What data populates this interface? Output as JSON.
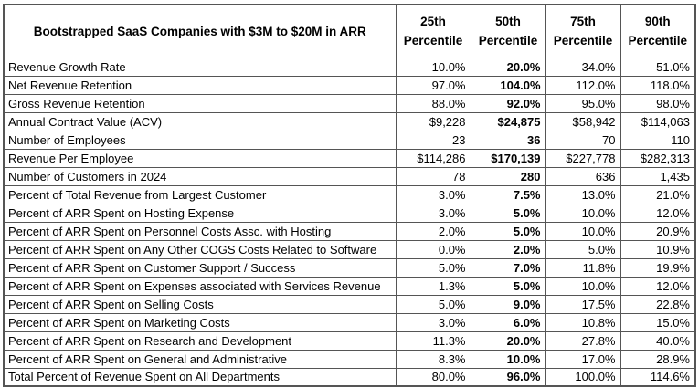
{
  "colors": {
    "background": "#ffffff",
    "border": "#555555",
    "text": "#000000"
  },
  "chart_data": {
    "type": "table",
    "title": "Bootstrapped SaaS Companies with $3M to $20M in ARR",
    "columns": [
      "25th Percentile",
      "50th Percentile",
      "75th Percentile",
      "90th Percentile"
    ],
    "emphasized_column": "50th Percentile",
    "rows": [
      {
        "label": "Revenue Growth Rate",
        "values": [
          "10.0%",
          "20.0%",
          "34.0%",
          "51.0%"
        ]
      },
      {
        "label": "Net Revenue Retention",
        "values": [
          "97.0%",
          "104.0%",
          "112.0%",
          "118.0%"
        ]
      },
      {
        "label": "Gross Revenue Retention",
        "values": [
          "88.0%",
          "92.0%",
          "95.0%",
          "98.0%"
        ]
      },
      {
        "label": "Annual Contract Value (ACV)",
        "values": [
          "$9,228",
          "$24,875",
          "$58,942",
          "$114,063"
        ]
      },
      {
        "label": "Number of Employees",
        "values": [
          "23",
          "36",
          "70",
          "110"
        ]
      },
      {
        "label": "Revenue Per Employee",
        "values": [
          "$114,286",
          "$170,139",
          "$227,778",
          "$282,313"
        ]
      },
      {
        "label": "Number of Customers in 2024",
        "values": [
          "78",
          "280",
          "636",
          "1,435"
        ]
      },
      {
        "label": "Percent of Total Revenue from Largest Customer",
        "values": [
          "3.0%",
          "7.5%",
          "13.0%",
          "21.0%"
        ]
      },
      {
        "label": "Percent of ARR Spent on Hosting Expense",
        "values": [
          "3.0%",
          "5.0%",
          "10.0%",
          "12.0%"
        ]
      },
      {
        "label": "Percent of ARR Spent on Personnel Costs Assc. with Hosting",
        "values": [
          "2.0%",
          "5.0%",
          "10.0%",
          "20.9%"
        ]
      },
      {
        "label": "Percent of ARR Spent on Any Other COGS Costs Related to Software",
        "values": [
          "0.0%",
          "2.0%",
          "5.0%",
          "10.9%"
        ]
      },
      {
        "label": "Percent of ARR Spent on Customer Support / Success",
        "values": [
          "5.0%",
          "7.0%",
          "11.8%",
          "19.9%"
        ]
      },
      {
        "label": "Percent of ARR Spent on Expenses associated with Services Revenue",
        "values": [
          "1.3%",
          "5.0%",
          "10.0%",
          "12.0%"
        ]
      },
      {
        "label": "Percent of ARR Spent on Selling Costs",
        "values": [
          "5.0%",
          "9.0%",
          "17.5%",
          "22.8%"
        ]
      },
      {
        "label": "Percent of ARR Spent on Marketing Costs",
        "values": [
          "3.0%",
          "6.0%",
          "10.8%",
          "15.0%"
        ]
      },
      {
        "label": "Percent of ARR Spent on Research and Development",
        "values": [
          "11.3%",
          "20.0%",
          "27.8%",
          "40.0%"
        ]
      },
      {
        "label": "Percent of ARR Spent on General and Administrative",
        "values": [
          "8.3%",
          "10.0%",
          "17.0%",
          "28.9%"
        ]
      },
      {
        "label": "Total Percent of Revenue Spent on All Departments",
        "values": [
          "80.0%",
          "96.0%",
          "100.0%",
          "114.6%"
        ]
      }
    ]
  }
}
